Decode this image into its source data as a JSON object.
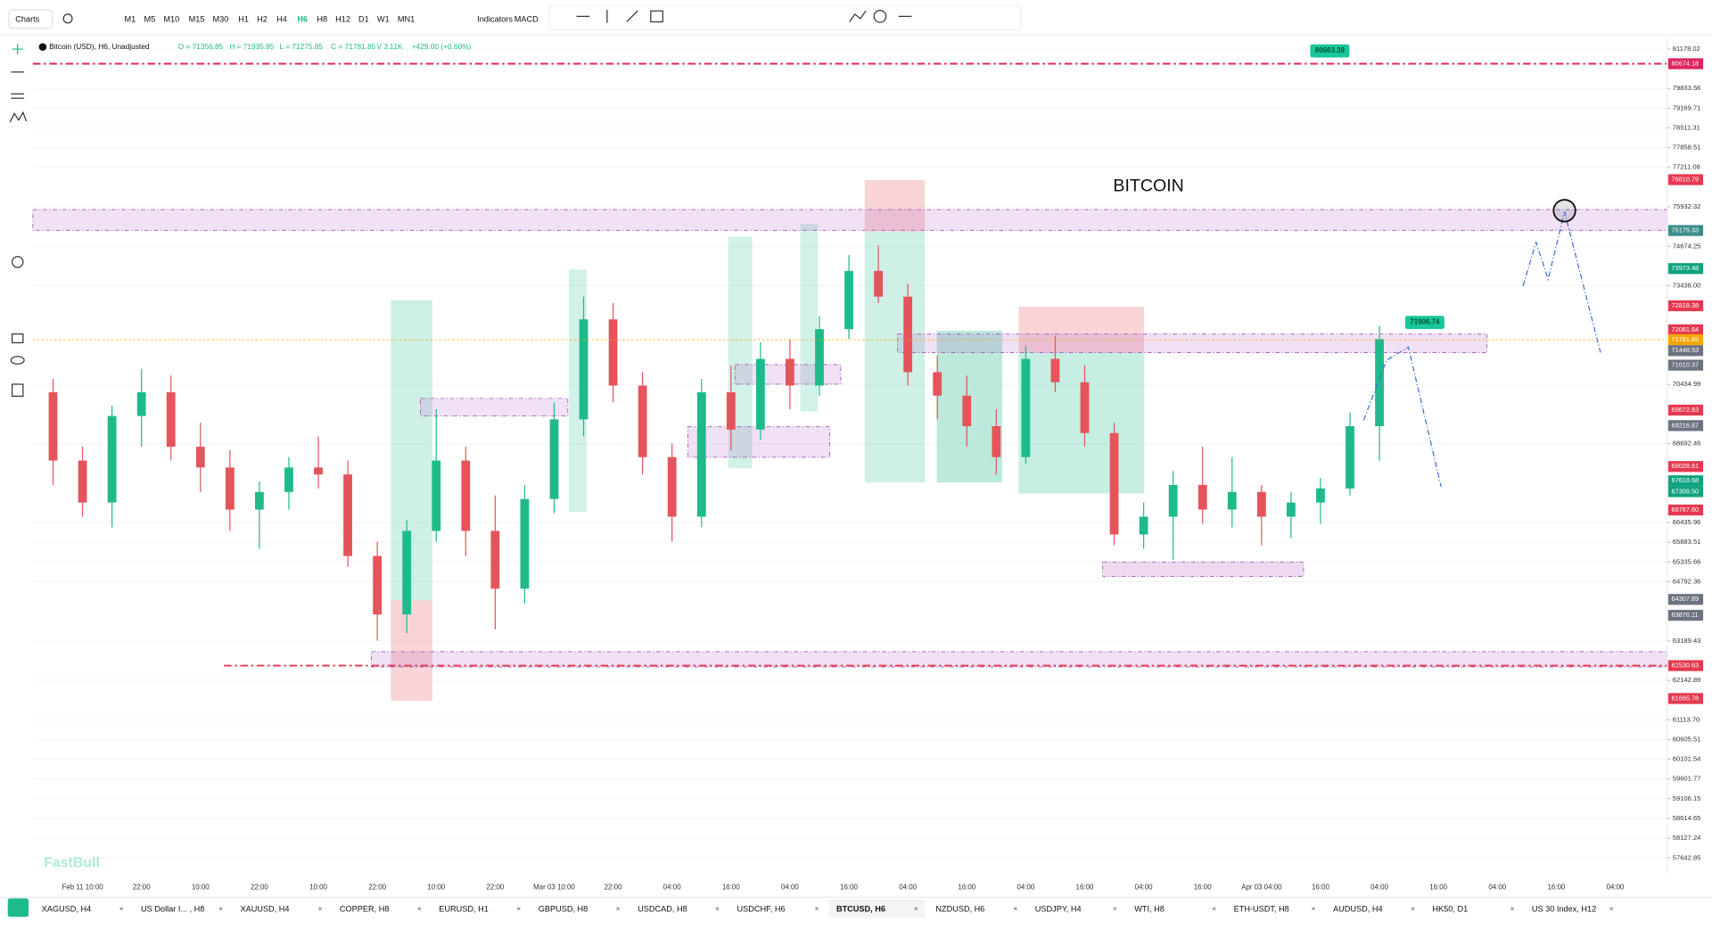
{
  "toolbar": {
    "menu": "Charts",
    "timeframes": [
      "M1",
      "M5",
      "M10",
      "M15",
      "M30",
      "H1",
      "H2",
      "H4",
      "H6",
      "H8",
      "H12",
      "D1",
      "W1",
      "MN1"
    ],
    "active_timeframe": 8,
    "indicators": "Indicators",
    "macd": "MACD"
  },
  "header": {
    "symbol": "Bitcoin (USD), H6, Unadjusted",
    "open": "O = 71356.85",
    "high": "H = 71935.85",
    "low": "L = 71275.85",
    "close": "C = 71781.85",
    "volume": "V 3.11K",
    "change": "+429.00 (+0.60%)"
  },
  "watermark": "FastBull",
  "chart_data": {
    "type": "candlestick",
    "log_scale": true,
    "grid": true,
    "up_color": "#1fba8b",
    "down_color": "#e5545b",
    "ylim": [
      57270,
      81550
    ],
    "yticks": [
      {
        "value": 81178.02,
        "label": "81178.02"
      },
      {
        "value": 79833.56,
        "label": "79833.56"
      },
      {
        "value": 79169.71,
        "label": "79169.71"
      },
      {
        "value": 78511.31,
        "label": "78511.31"
      },
      {
        "value": 77858.51,
        "label": "77858.51"
      },
      {
        "value": 77211.08,
        "label": "77211.08"
      },
      {
        "value": 75932.32,
        "label": "75932.32"
      },
      {
        "value": 74674.25,
        "label": "74674.25"
      },
      {
        "value": 73438,
        "label": "73438.00"
      },
      {
        "value": 70434.99,
        "label": "70434.99"
      },
      {
        "value": 68692.46,
        "label": "68692.46"
      },
      {
        "value": 66435.96,
        "label": "66435.96"
      },
      {
        "value": 65883.51,
        "label": "65883.51"
      },
      {
        "value": 65335.66,
        "label": "65335.66"
      },
      {
        "value": 64792.36,
        "label": "64792.36"
      },
      {
        "value": 63189.43,
        "label": "63189.43"
      },
      {
        "value": 62142.89,
        "label": "62142.89"
      },
      {
        "value": 61113.7,
        "label": "61113.70"
      },
      {
        "value": 60605.51,
        "label": "60605.51"
      },
      {
        "value": 60101.54,
        "label": "60101.54"
      },
      {
        "value": 59601.77,
        "label": "59601.77"
      },
      {
        "value": 59106.15,
        "label": "59106.15"
      },
      {
        "value": 58614.65,
        "label": "58614.65"
      },
      {
        "value": 58127.24,
        "label": "58127.24"
      },
      {
        "value": 57642.85,
        "label": "57642.85"
      }
    ],
    "categories": [
      null,
      null,
      "Feb 11 10:00",
      null,
      "22:00",
      null,
      "10:00",
      null,
      "22:00",
      null,
      "10:00",
      null,
      "22:00",
      null,
      "10:00",
      null,
      "22:00",
      null,
      "Mar 03 10:00",
      null,
      "22:00",
      null,
      "04:00",
      null,
      "16:00",
      null,
      "04:00",
      null,
      "16:00",
      null,
      "04:00",
      null,
      "16:00",
      null,
      "04:00",
      null,
      "16:00",
      null,
      "04:00",
      null,
      "16:00",
      null,
      "Apr 03 04:00",
      null,
      "16:00",
      null,
      "04:00",
      null,
      "16:00",
      null,
      "04:00",
      null,
      "16:00",
      null,
      "04:00"
    ],
    "open": [
      null,
      70200,
      68200,
      67000,
      69500,
      70200,
      68600,
      68000,
      66800,
      67300,
      68000,
      67800,
      65500,
      63900,
      66200,
      68200,
      66200,
      64600,
      67100,
      69400,
      72400,
      70400,
      68300,
      66600,
      70200,
      69100,
      71200,
      70400,
      72100,
      73900,
      73100,
      70800,
      70100,
      69200,
      68300,
      71200,
      70500,
      69000,
      66100,
      66600,
      67500,
      66800,
      67300,
      66600,
      67000,
      67400,
      69200,
      null,
      null,
      null,
      null,
      null,
      null,
      null,
      null
    ],
    "high": [
      null,
      70600,
      68600,
      69800,
      70900,
      70700,
      69300,
      68500,
      67600,
      68300,
      68900,
      68200,
      65900,
      66500,
      69700,
      68600,
      67200,
      67500,
      69900,
      73100,
      72900,
      70800,
      68700,
      70600,
      71000,
      71700,
      71800,
      72500,
      74400,
      74700,
      73500,
      71300,
      70700,
      69700,
      71600,
      71900,
      71000,
      69300,
      67000,
      67900,
      68600,
      68300,
      67500,
      67300,
      67700,
      69600,
      72200,
      null,
      null,
      null,
      null,
      null,
      null,
      null,
      null
    ],
    "low": [
      null,
      67500,
      66600,
      66300,
      68600,
      68200,
      67300,
      66200,
      65700,
      66800,
      67400,
      65200,
      63200,
      63400,
      65900,
      65500,
      63500,
      64200,
      66700,
      68900,
      69900,
      67800,
      65900,
      66300,
      68500,
      68800,
      69700,
      70100,
      71800,
      72900,
      70400,
      69400,
      68600,
      67800,
      68100,
      70200,
      68600,
      65800,
      65700,
      65400,
      66400,
      66300,
      65800,
      66000,
      66400,
      67200,
      68200,
      null,
      null,
      null,
      null,
      null,
      null,
      null,
      null
    ],
    "close": [
      null,
      68200,
      67000,
      69500,
      70200,
      68600,
      68000,
      66800,
      67300,
      68000,
      67800,
      65500,
      63900,
      66200,
      68200,
      66200,
      64600,
      67100,
      69400,
      72400,
      70400,
      68300,
      66600,
      70200,
      69100,
      71200,
      70400,
      72100,
      73900,
      73100,
      70800,
      70100,
      69200,
      68300,
      71200,
      70500,
      69000,
      66100,
      66600,
      67500,
      66800,
      67300,
      66600,
      67000,
      67400,
      69200,
      71800,
      null,
      null,
      null,
      null,
      null,
      null,
      null,
      null
    ],
    "price_tags": [
      {
        "value": 80674.18,
        "label": "80674.18",
        "color": "#e0245e",
        "line": true
      },
      {
        "value": 76810.79,
        "label": "76810.79",
        "color": "#e5394f"
      },
      {
        "value": 75175.33,
        "label": "75175.33",
        "color": "#3c8d8a"
      },
      {
        "value": 73973.48,
        "label": "73973.48",
        "color": "#0fa37f"
      },
      {
        "value": 72818.38,
        "label": "72818.38",
        "color": "#e5394f"
      },
      {
        "value": 72081.64,
        "label": "72081.64",
        "color": "#e5394f"
      },
      {
        "value": 71781.85,
        "label": "71781.85",
        "color": "#f7a600",
        "line": true
      },
      {
        "value": 71448.53,
        "label": "71448.53",
        "color": "#6b7280"
      },
      {
        "value": 71010.37,
        "label": "71010.37",
        "color": "#6b7280"
      },
      {
        "value": 69672.83,
        "label": "69672.83",
        "color": "#e5394f"
      },
      {
        "value": 69216.87,
        "label": "69216.87",
        "color": "#6b7280"
      },
      {
        "value": 68028.61,
        "label": "68028.61",
        "color": "#e5394f"
      },
      {
        "value": 67618.68,
        "label": "67618.68",
        "color": "#0fa37f"
      },
      {
        "value": 67308.5,
        "label": "67308.50",
        "color": "#0fa37f"
      },
      {
        "value": 66787.6,
        "label": "66787.60",
        "color": "#e5394f"
      },
      {
        "value": 64307.89,
        "label": "64307.89",
        "color": "#6b7280"
      },
      {
        "value": 63876.11,
        "label": "63876.11",
        "color": "#6b7280"
      },
      {
        "value": 62530.63,
        "label": "62530.63",
        "color": "#e5394f",
        "line": true
      },
      {
        "value": 61665.78,
        "label": "61665.78",
        "color": "#e5394f"
      }
    ],
    "annotations": [
      {
        "value": 80663.39,
        "label": "80663.39"
      },
      {
        "value": 71906.74,
        "label": "71906.74"
      }
    ],
    "chart_label": "BITCOIN"
  },
  "tabs": [
    "XAGUSD, H4",
    "US Dollar I... , H8",
    "XAUUSD, H4",
    "COPPER, H8",
    "EURUSD, H1",
    "GBPUSD, H8",
    "USDCAD, H8",
    "USDCHF, H6",
    "BTCUSD, H6",
    "NZDUSD, H6",
    "USDJPY, H4",
    "WTI, H8",
    "ETH-USDT, H8",
    "AUDUSD, H4",
    "HK50, D1",
    "US 30 Index, H12"
  ],
  "active_tab": 8
}
